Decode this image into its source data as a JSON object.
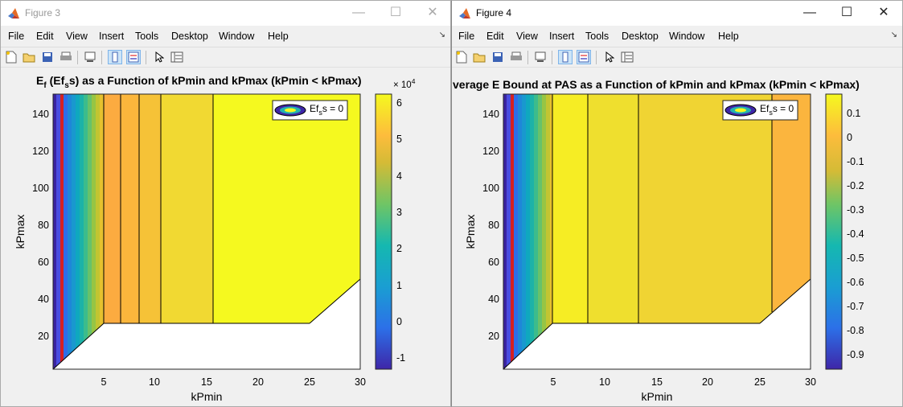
{
  "windows": [
    {
      "title": "Figure 3",
      "menu": [
        "File",
        "Edit",
        "View",
        "Insert",
        "Tools",
        "Desktop",
        "Window",
        "Help"
      ],
      "plot": {
        "title_pre": "E",
        "title_sub": "f",
        "title_mid": " (Ef",
        "title_sub2": "s",
        "title_post": "s) as a Function of kPmin and kPmax (kPmin < kPmax)",
        "xlabel": "kPmin",
        "ylabel": "kPmax",
        "x_ticks": [
          "5",
          "10",
          "15",
          "20",
          "25",
          "30"
        ],
        "y_ticks": [
          "20",
          "40",
          "60",
          "80",
          "100",
          "120",
          "140"
        ],
        "colorbar_exponent_base": "× 10",
        "colorbar_exponent": "4",
        "colorbar_ticks": [
          "6",
          "5",
          "4",
          "3",
          "2",
          "1",
          "0",
          "-1"
        ],
        "legend_text_pre": "Ef",
        "legend_text_sub": "s",
        "legend_text_post": "s = 0"
      }
    },
    {
      "title": "Figure 4",
      "menu": [
        "File",
        "Edit",
        "View",
        "Insert",
        "Tools",
        "Desktop",
        "Window",
        "Help"
      ],
      "plot": {
        "title": "verage E Bound at PAS as a Function of kPmin and kPmax (kPmin < kPmax)",
        "xlabel": "kPmin",
        "ylabel": "kPmax",
        "x_ticks": [
          "5",
          "10",
          "15",
          "20",
          "25",
          "30"
        ],
        "y_ticks": [
          "20",
          "40",
          "60",
          "80",
          "100",
          "120",
          "140"
        ],
        "colorbar_ticks": [
          "0.1",
          "0",
          "-0.1",
          "-0.2",
          "-0.3",
          "-0.4",
          "-0.5",
          "-0.6",
          "-0.7",
          "-0.8",
          "-0.9"
        ],
        "legend_text_pre": "Ef",
        "legend_text_sub": "s",
        "legend_text_post": "s = 0"
      }
    }
  ],
  "status_text": "",
  "colors": {
    "parula_yellow": "#f5f91f",
    "parula_orange": "#fcb93a",
    "parula_light_orange": "#f8cf2f",
    "parula_blue": "#3e26a8",
    "contour_red": "#d62020"
  }
}
